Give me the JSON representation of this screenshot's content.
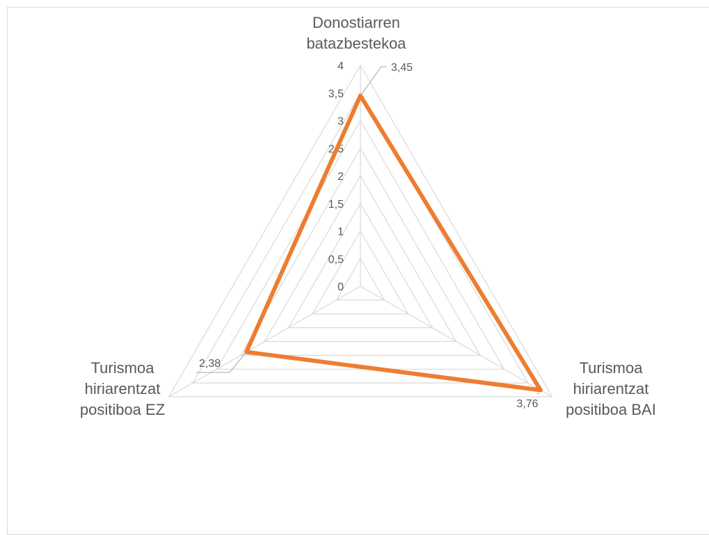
{
  "chart_data": {
    "type": "radar",
    "axes": [
      [
        "Donostiarren",
        "batazbestekoa"
      ],
      [
        "Turismoa",
        "hiriarentzat",
        "positiboa BAI"
      ],
      [
        "Turismoa",
        "hiriarentzat",
        "positiboa EZ"
      ]
    ],
    "ticks": [
      "0",
      "0,5",
      "1",
      "1,5",
      "2",
      "2,5",
      "3",
      "3,5",
      "4"
    ],
    "range": [
      0,
      4
    ],
    "series": [
      {
        "values": [
          3.45,
          3.76,
          2.38
        ],
        "data_labels": [
          "3,45",
          "3,76",
          "2,38"
        ],
        "color": "#ed7d31"
      }
    ],
    "grid": true,
    "legend": "none"
  }
}
